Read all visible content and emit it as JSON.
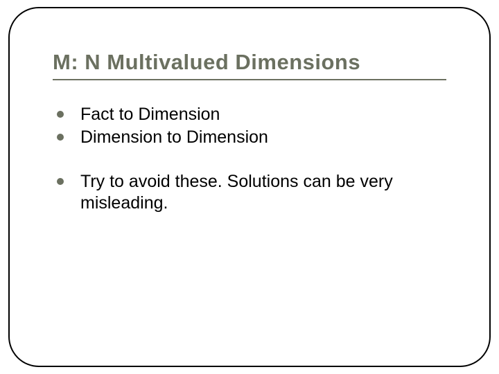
{
  "slide": {
    "title": "M: N Multivalued Dimensions",
    "bullets": [
      "Fact to Dimension",
      "Dimension to Dimension",
      "Try to avoid these.  Solutions can be very misleading."
    ],
    "colors": {
      "accent": "#6b7060",
      "text": "#000000",
      "frame": "#000000",
      "background": "#ffffff"
    },
    "typography": {
      "title_fontsize": 31,
      "body_fontsize": 25,
      "font_family": "Arial"
    },
    "layout": {
      "frame_border_radius": 44,
      "bullet_diameter": 10
    }
  }
}
